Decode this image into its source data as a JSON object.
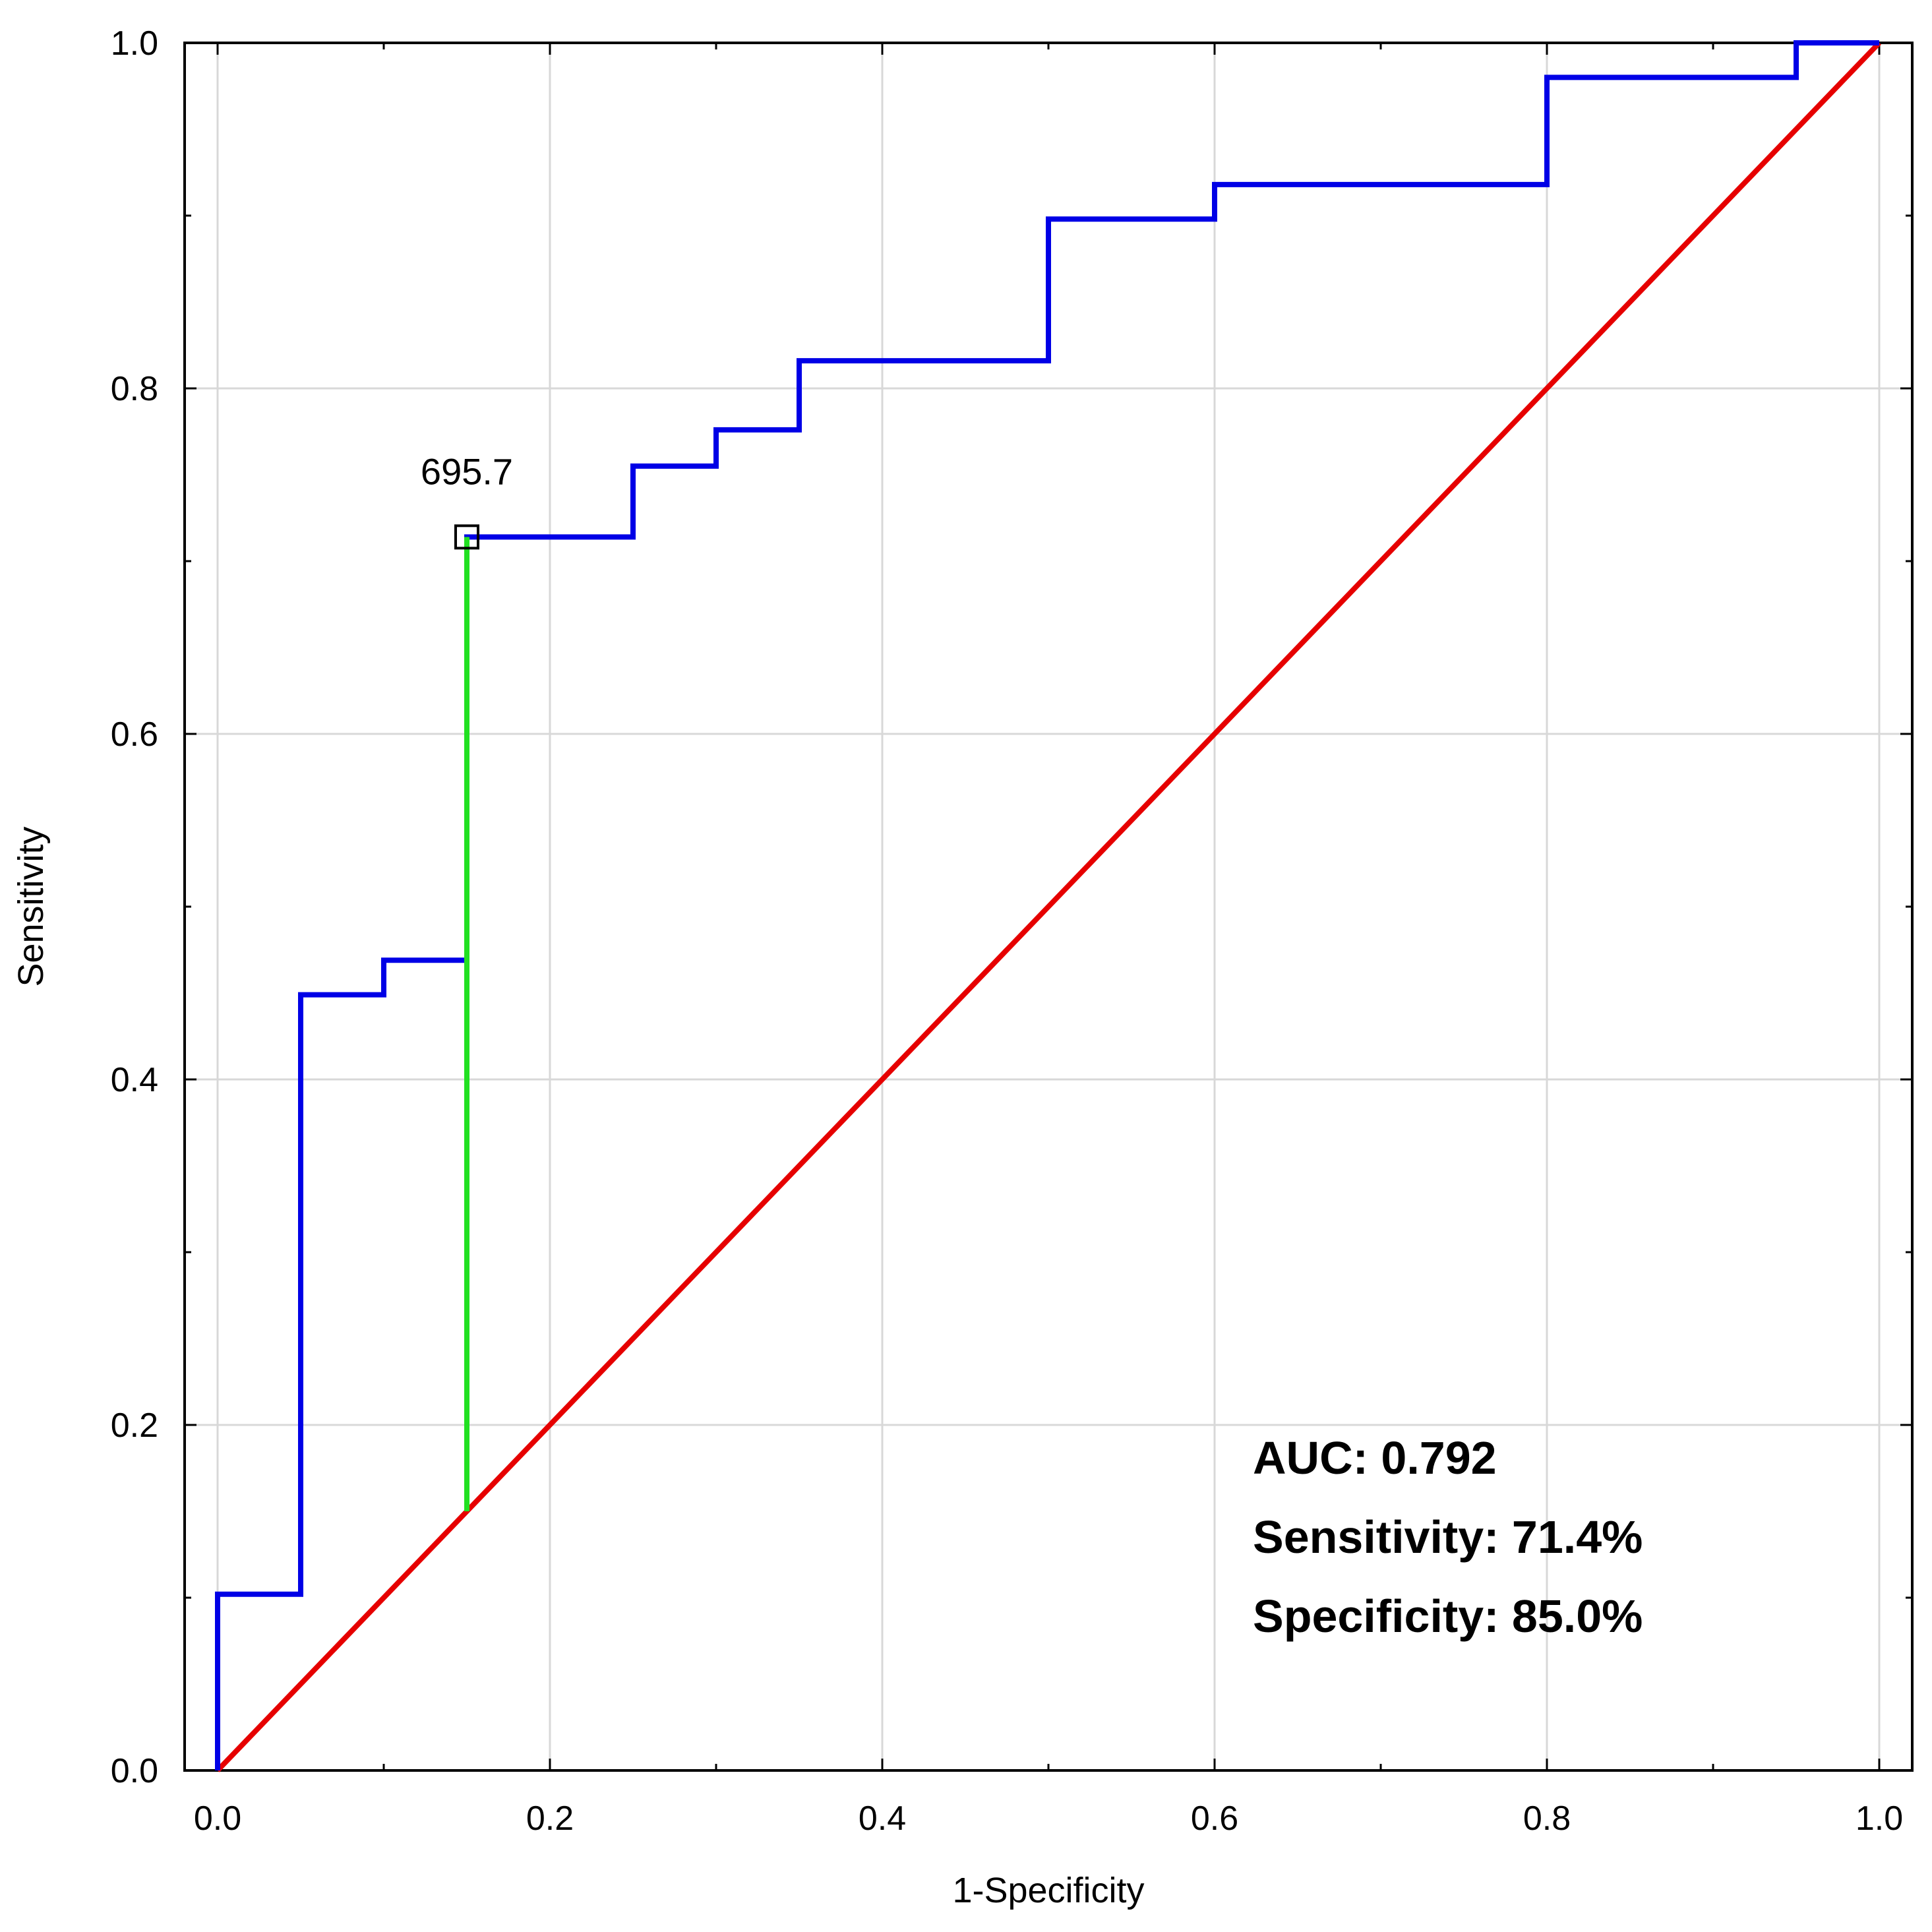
{
  "chart_data": {
    "type": "line",
    "title": "",
    "xlabel": "1-Specificity",
    "ylabel": "Sensitivity",
    "xlim": [
      0,
      1
    ],
    "ylim": [
      0,
      1
    ],
    "xticks": [
      "0.0",
      "0.2",
      "0.4",
      "0.6",
      "0.8",
      "1.0"
    ],
    "yticks": [
      "0.0",
      "0.2",
      "0.4",
      "0.6",
      "0.8",
      "1.0"
    ],
    "grid": true,
    "series": [
      {
        "name": "ROC curve",
        "color": "#0000e6",
        "style": "step",
        "x": [
          0.0,
          0.0,
          0.05,
          0.05,
          0.1,
          0.1,
          0.15,
          0.15,
          0.25,
          0.25,
          0.3,
          0.3,
          0.35,
          0.35,
          0.5,
          0.5,
          0.6,
          0.6,
          0.8,
          0.8,
          0.95,
          0.95,
          1.0
        ],
        "y": [
          0.0,
          0.102,
          0.102,
          0.449,
          0.449,
          0.469,
          0.469,
          0.714,
          0.714,
          0.755,
          0.755,
          0.776,
          0.776,
          0.816,
          0.816,
          0.898,
          0.898,
          0.918,
          0.918,
          0.98,
          0.98,
          1.0,
          1.0
        ]
      },
      {
        "name": "Reference line",
        "color": "#e60000",
        "style": "line",
        "x": [
          0.0,
          1.0
        ],
        "y": [
          0.0,
          1.0
        ]
      }
    ],
    "youden_line": {
      "color": "#22e022",
      "x": 0.15,
      "y_from": 0.15,
      "y_to": 0.714
    },
    "cutoff_point": {
      "x": 0.15,
      "y": 0.714,
      "label": "695.7"
    },
    "annotations": [
      "AUC: 0.792",
      "Sensitivity: 71.4%",
      "Specificity: 85.0%"
    ],
    "annotation_position": "bottom-right"
  }
}
